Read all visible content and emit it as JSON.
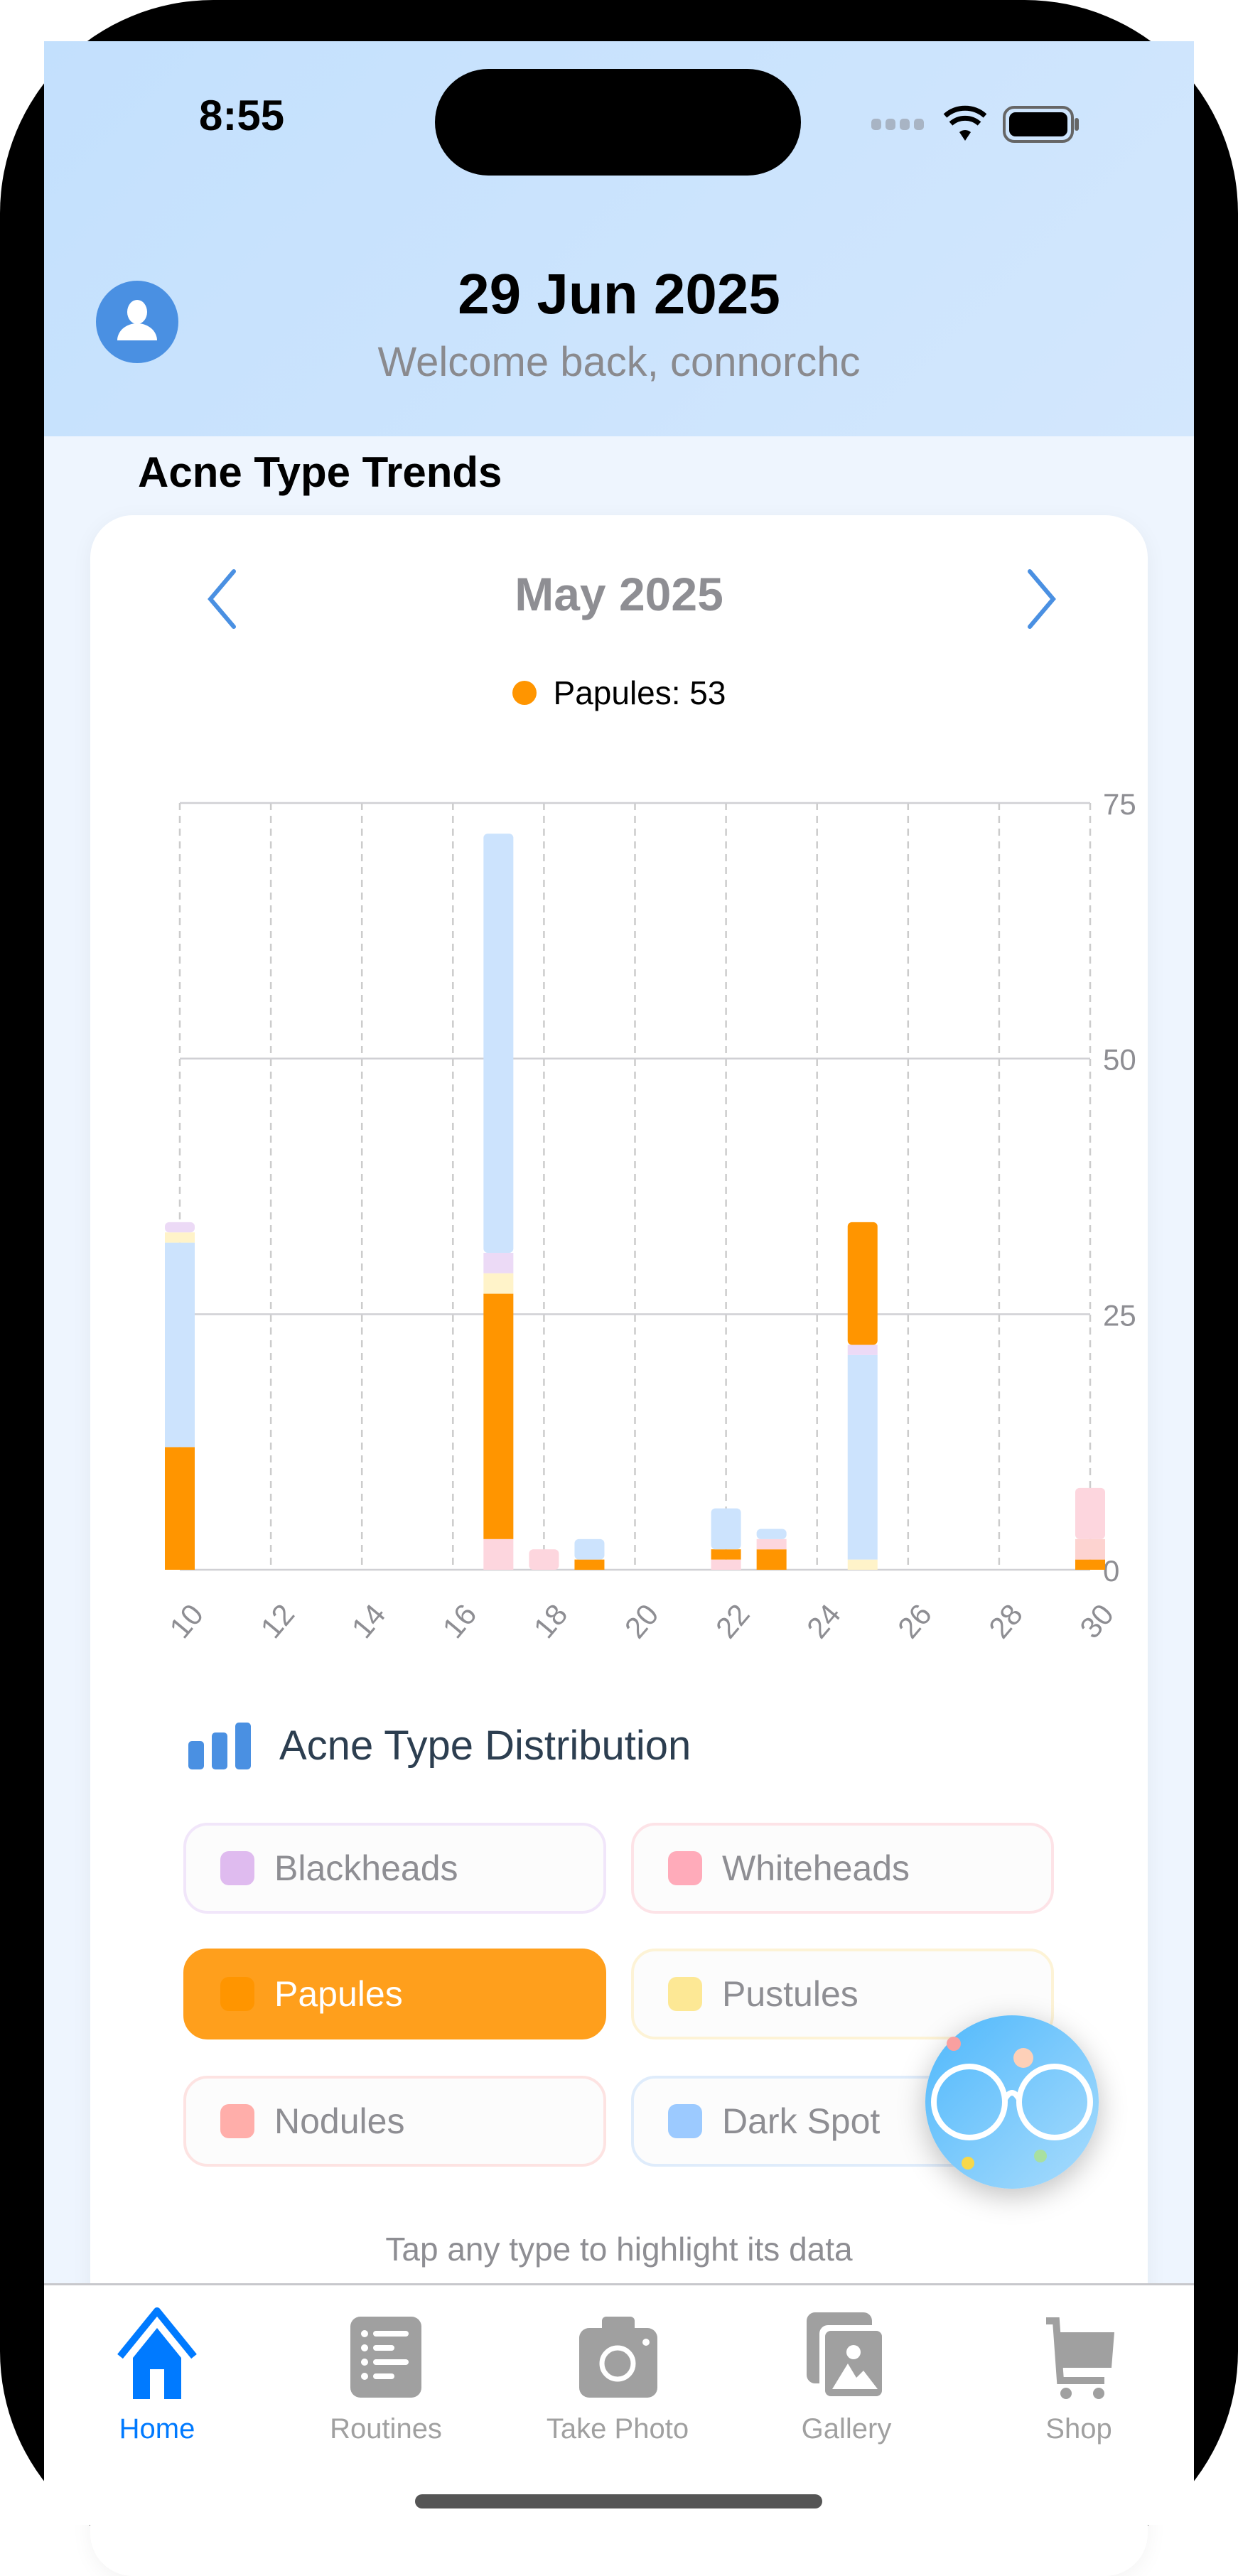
{
  "status": {
    "time": "8:55"
  },
  "header": {
    "date": "29 Jun 2025",
    "welcome": "Welcome back, connorchc"
  },
  "section_title": "Acne Type Trends",
  "card": {
    "month": "May 2025",
    "legend": "Papules: 53",
    "legend_color": "#ff9500"
  },
  "chart_data": {
    "type": "bar",
    "stacked": true,
    "title": "May 2025",
    "xlabel": "",
    "ylabel": "",
    "xlim": [
      10,
      30
    ],
    "ylim": [
      0,
      75
    ],
    "yticks": [
      "0",
      "25",
      "50",
      "75"
    ],
    "xticks": [
      "10",
      "12",
      "14",
      "16",
      "18",
      "20",
      "22",
      "24",
      "26",
      "28",
      "30"
    ],
    "y_axis": "right",
    "grid": true,
    "colors": {
      "Blackheads": "#ecdaf6",
      "Whiteheads": "#fdd6de",
      "Papules": "#ff9500",
      "Pustules": "#fff3c9",
      "Nodules": "#fdd3d0",
      "Dark Spot": "#cce3fd"
    },
    "days": [
      {
        "day": 10,
        "segments": [
          [
            "Papules",
            12
          ],
          [
            "Dark Spot",
            20
          ],
          [
            "Pustules",
            1
          ],
          [
            "Blackheads",
            1
          ]
        ]
      },
      {
        "day": 17,
        "segments": [
          [
            "Whiteheads",
            3
          ],
          [
            "Papules",
            24
          ],
          [
            "Pustules",
            2
          ],
          [
            "Blackheads",
            2
          ],
          [
            "Dark Spot",
            41
          ]
        ]
      },
      {
        "day": 18,
        "segments": [
          [
            "Whiteheads",
            2
          ]
        ]
      },
      {
        "day": 19,
        "segments": [
          [
            "Papules",
            1
          ],
          [
            "Dark Spot",
            2
          ]
        ]
      },
      {
        "day": 22,
        "segments": [
          [
            "Whiteheads",
            1
          ],
          [
            "Papules",
            1
          ],
          [
            "Dark Spot",
            4
          ]
        ]
      },
      {
        "day": 23,
        "segments": [
          [
            "Papules",
            2
          ],
          [
            "Whiteheads",
            1
          ],
          [
            "Dark Spot",
            1
          ]
        ]
      },
      {
        "day": 25,
        "segments": [
          [
            "Pustules",
            1
          ],
          [
            "Dark Spot",
            20
          ],
          [
            "Blackheads",
            1
          ],
          [
            "Papules",
            12
          ]
        ]
      },
      {
        "day": 30,
        "segments": [
          [
            "Papules",
            1
          ],
          [
            "Nodules",
            2
          ],
          [
            "Whiteheads",
            5
          ]
        ]
      }
    ]
  },
  "distribution": {
    "title": "Acne Type Distribution",
    "types": [
      {
        "label": "Blackheads",
        "color": "#dfbbef",
        "border": "#f1e6fa",
        "active": false
      },
      {
        "label": "Whiteheads",
        "color": "#ffabba",
        "border": "#fde3e7",
        "active": false
      },
      {
        "label": "Papules",
        "color": "#ff9500",
        "border": "#ff9f1c",
        "active": true
      },
      {
        "label": "Pustules",
        "color": "#fde895",
        "border": "#fdf3d6",
        "active": false
      },
      {
        "label": "Nodules",
        "color": "#ffaeaa",
        "border": "#fde3e2",
        "active": false
      },
      {
        "label": "Dark Spot",
        "color": "#9ccaff",
        "border": "#dfecfb",
        "active": false
      }
    ],
    "tip": "Tap any type to highlight its data"
  },
  "tabs": [
    {
      "label": "Home",
      "icon": "house-icon"
    },
    {
      "label": "Routines",
      "icon": "list-icon"
    },
    {
      "label": "Take Photo",
      "icon": "camera-icon"
    },
    {
      "label": "Gallery",
      "icon": "photos-icon"
    },
    {
      "label": "Shop",
      "icon": "cart-icon"
    }
  ]
}
